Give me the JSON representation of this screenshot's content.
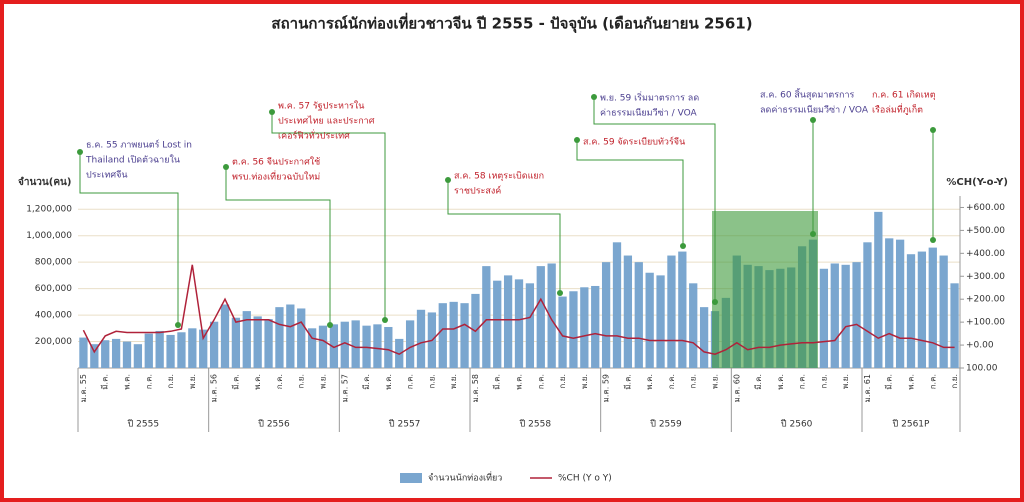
{
  "chart_data": {
    "type": "bar",
    "title": "สถานการณ์นักท่องเที่ยวชาวจีน ปี 2555 - ปัจจุบัน (เดือนกันยายน 2561)",
    "y_label": "จำนวน(คน)",
    "y2_label": "%CH(Y-o-Y)",
    "categories": [
      "ม.ค. 55",
      null,
      "มี.ค.",
      null,
      "พ.ค.",
      null,
      "ก.ค.",
      null,
      "ก.ย.",
      null,
      "พ.ย.",
      null,
      "ม.ค. 56",
      null,
      "มี.ค.",
      null,
      "พ.ค.",
      null,
      "ก.ค.",
      null,
      "ก.ย.",
      null,
      "พ.ย.",
      null,
      "ม.ค. 57",
      null,
      "มี.ค.",
      null,
      "พ.ค.",
      null,
      "ก.ค.",
      null,
      "ก.ย.",
      null,
      "พ.ย.",
      null,
      "ม.ค. 58",
      null,
      "มี.ค.",
      null,
      "พ.ค.",
      null,
      "ก.ค.",
      null,
      "ก.ย.",
      null,
      "พ.ย.",
      null,
      "ม.ค. 59",
      null,
      "มี.ค.",
      null,
      "พ.ค.",
      null,
      "ก.ค.",
      null,
      "ก.ย.",
      null,
      "พ.ย.",
      null,
      "ม.ค. 60",
      null,
      "มี.ค.",
      null,
      "พ.ค.",
      null,
      "ก.ค.",
      null,
      "ก.ย.",
      null,
      "พ.ย.",
      null,
      "ม.ค. 61",
      null,
      "มี.ค.",
      null,
      "พ.ค.",
      null,
      "ก.ค.",
      null,
      "ก.ย."
    ],
    "year_groups": [
      "ปี 2555",
      "ปี 2556",
      "ปี 2557",
      "ปี 2558",
      "ปี 2559",
      "ปี 2560",
      "ปี 2561P"
    ],
    "series": [
      {
        "name": "จำนวนนักท่องเที่ยว",
        "color": "#7aa6cf",
        "values": [
          230000,
          180000,
          210000,
          220000,
          200000,
          180000,
          260000,
          280000,
          250000,
          270000,
          300000,
          290000,
          350000,
          480000,
          380000,
          430000,
          390000,
          370000,
          460000,
          480000,
          450000,
          300000,
          320000,
          330000,
          350000,
          360000,
          320000,
          330000,
          310000,
          220000,
          360000,
          440000,
          420000,
          490000,
          500000,
          490000,
          560000,
          770000,
          660000,
          700000,
          670000,
          640000,
          770000,
          790000,
          540000,
          580000,
          610000,
          620000,
          800000,
          950000,
          850000,
          800000,
          720000,
          700000,
          850000,
          880000,
          640000,
          460000,
          430000,
          530000,
          850000,
          780000,
          770000,
          740000,
          750000,
          760000,
          920000,
          970000,
          750000,
          790000,
          780000,
          800000,
          950000,
          1180000,
          980000,
          970000,
          860000,
          880000,
          910000,
          850000,
          640000
        ]
      },
      {
        "name": "%CH (Y o Y)",
        "color": "#b0223a",
        "axis": "y2",
        "values": [
          65,
          -30,
          40,
          60,
          55,
          55,
          55,
          55,
          60,
          70,
          350,
          30,
          110,
          200,
          100,
          110,
          110,
          110,
          90,
          80,
          100,
          30,
          20,
          -10,
          10,
          -10,
          -10,
          -15,
          -20,
          -40,
          -10,
          10,
          20,
          70,
          70,
          90,
          60,
          110,
          110,
          110,
          110,
          120,
          200,
          110,
          40,
          30,
          40,
          50,
          40,
          40,
          30,
          30,
          20,
          20,
          20,
          20,
          10,
          -30,
          -40,
          -20,
          10,
          -20,
          -10,
          -10,
          0,
          5,
          10,
          10,
          15,
          20,
          80,
          90,
          60,
          30,
          50,
          30,
          30,
          20,
          10,
          -10,
          -10
        ]
      }
    ],
    "ylim": [
      0,
      1300000
    ],
    "yticks": [
      {
        "value": 200000,
        "label": "200,000"
      },
      {
        "value": 400000,
        "label": "400,000"
      },
      {
        "value": 600000,
        "label": "600,000"
      },
      {
        "value": 800000,
        "label": "800,000"
      },
      {
        "value": 1000000,
        "label": "1,000,000"
      },
      {
        "value": 1200000,
        "label": "1,200,000"
      }
    ],
    "y2lim": [
      -100,
      650
    ],
    "y2ticks": [
      {
        "value": -100,
        "label": "100.00"
      },
      {
        "value": 0,
        "label": "+0.00"
      },
      {
        "value": 100,
        "label": "+100.00"
      },
      {
        "value": 200,
        "label": "+200.00"
      },
      {
        "value": 300,
        "label": "+300.00"
      },
      {
        "value": 400,
        "label": "+400.00"
      },
      {
        "value": 500,
        "label": "+500.00"
      },
      {
        "value": 600,
        "label": "+600.00"
      }
    ],
    "grid": true,
    "annotations": [
      {
        "lines": [
          "ธ.ค. 55 ภาพยนตร์ Lost in",
          "Thailand เปิดตัวฉายใน",
          "ประเทศจีน"
        ],
        "color": "#4b3f8f"
      },
      {
        "lines": [
          "ต.ค. 56 จีนประกาศใช้",
          "พรบ.ท่องเที่ยวฉบับใหม่"
        ],
        "color": "#c0202a"
      },
      {
        "lines": [
          "พ.ค. 57 รัฐประหารใน",
          "ประเทศไทย และประกาศ",
          "เคอร์ฟิวทั่วประเทศ"
        ],
        "color": "#c0202a"
      },
      {
        "lines": [
          "ส.ค. 58 เหตุระเบิดแยก",
          "ราชประสงค์"
        ],
        "color": "#c0202a"
      },
      {
        "lines": [
          "ส.ค. 59 จัดระเบียบทัวร์จีน"
        ],
        "color": "#c0202a"
      },
      {
        "lines": [
          "พ.ย. 59 เริ่มมาตรการ ลด",
          "ค่าธรรมเนียมวีซ่า / VOA"
        ],
        "color": "#4b3f8f"
      },
      {
        "lines": [
          "ส.ค. 60 สิ้นสุดมาตรการ",
          "ลดค่าธรรมเนียมวีซ่า / VOA"
        ],
        "color": "#4b3f8f"
      },
      {
        "lines": [
          "ก.ค. 61 เกิดเหตุ",
          "เรือล่มที่ภูเก็ต"
        ],
        "color": "#c0202a"
      }
    ]
  }
}
